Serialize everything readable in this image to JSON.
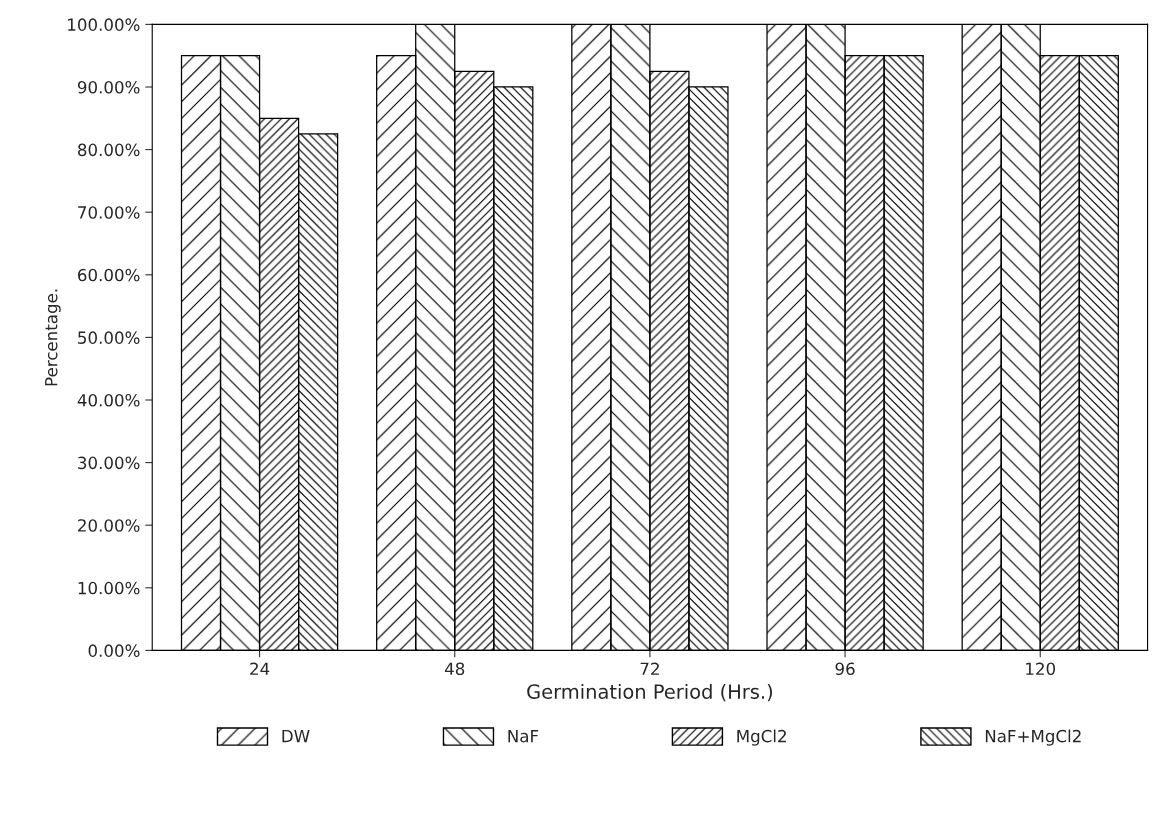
{
  "chart_data": {
    "type": "bar",
    "xlabel": "Germination Period (Hrs.)",
    "ylabel": "Percentage.",
    "categories": [
      "24",
      "48",
      "72",
      "96",
      "120"
    ],
    "series": [
      {
        "name": "DW",
        "color": "#000000",
        "values": [
          95,
          95,
          100,
          100,
          100
        ]
      },
      {
        "name": "NaF",
        "color": "#000000",
        "values": [
          95,
          100,
          100,
          100,
          100
        ]
      },
      {
        "name": "MgCl2",
        "color": "#000000",
        "values": [
          85,
          92.5,
          92.5,
          95,
          95
        ]
      },
      {
        "name": "NaF+MgCl2",
        "color": "#000000",
        "values": [
          82.5,
          90,
          90,
          95,
          95
        ]
      }
    ],
    "ylim": [
      0,
      100
    ],
    "yticks": [
      {
        "value": 0,
        "label": "0.00%"
      },
      {
        "value": 10,
        "label": "10.00%"
      },
      {
        "value": 20,
        "label": "20.00%"
      },
      {
        "value": 30,
        "label": "30.00%"
      },
      {
        "value": 40,
        "label": "40.00%"
      },
      {
        "value": 50,
        "label": "50.00%"
      },
      {
        "value": 60,
        "label": "60.00%"
      },
      {
        "value": 70,
        "label": "70.00%"
      },
      {
        "value": 80,
        "label": "80.00%"
      },
      {
        "value": 90,
        "label": "90.00%"
      },
      {
        "value": 100,
        "label": "100.00%"
      }
    ],
    "grid": false,
    "legend": "bottom"
  }
}
